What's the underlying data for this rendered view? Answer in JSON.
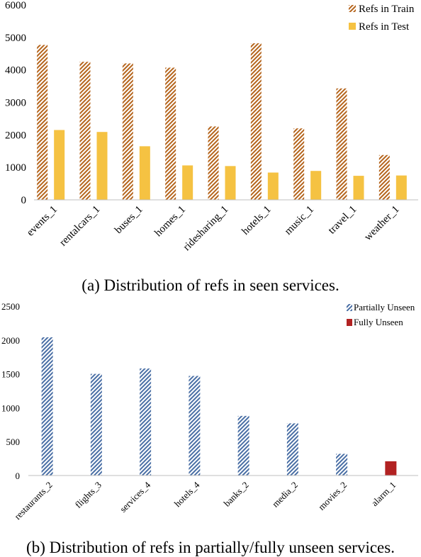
{
  "chart_data": [
    {
      "type": "bar",
      "categories": [
        "events_1",
        "rentalcars_1",
        "buses_1",
        "homes_1",
        "ridesharing_1",
        "hotels_1",
        "music_1",
        "travel_1",
        "weather_1"
      ],
      "series": [
        {
          "name": "Refs in Train",
          "values": [
            4770,
            4250,
            4200,
            4070,
            2260,
            4820,
            2200,
            3430,
            1380
          ],
          "color": "#b5651d",
          "pattern": "hatch"
        },
        {
          "name": "Refs in Test",
          "values": [
            2150,
            2090,
            1650,
            1060,
            1040,
            840,
            890,
            740,
            750
          ],
          "color": "#f5c242",
          "pattern": "solid"
        }
      ],
      "yticks": [
        "0",
        "1000",
        "2000",
        "3000",
        "4000",
        "5000",
        "6000"
      ],
      "ylim": [
        0,
        6000
      ],
      "legend": "top-right",
      "caption": "(a) Distribution of refs in seen services."
    },
    {
      "type": "bar",
      "categories": [
        "restaurants_2",
        "flights_3",
        "services_4",
        "hotels_4",
        "banks_2",
        "media_2",
        "movies_2",
        "alarm_1"
      ],
      "series": [
        {
          "name": "Partially Unseen",
          "values": [
            2040,
            1500,
            1580,
            1470,
            880,
            770,
            320,
            null
          ],
          "color": "#4a6fa5",
          "pattern": "hatch"
        },
        {
          "name": "Fully Unseen",
          "values": [
            null,
            null,
            null,
            null,
            null,
            null,
            null,
            210
          ],
          "color": "#b22222",
          "pattern": "solid"
        }
      ],
      "yticks": [
        "0",
        "500",
        "1000",
        "1500",
        "2000",
        "2500"
      ],
      "ylim": [
        0,
        2500
      ],
      "legend": "top-right",
      "caption": "(b) Distribution of refs in partially/fully unseen services."
    }
  ]
}
